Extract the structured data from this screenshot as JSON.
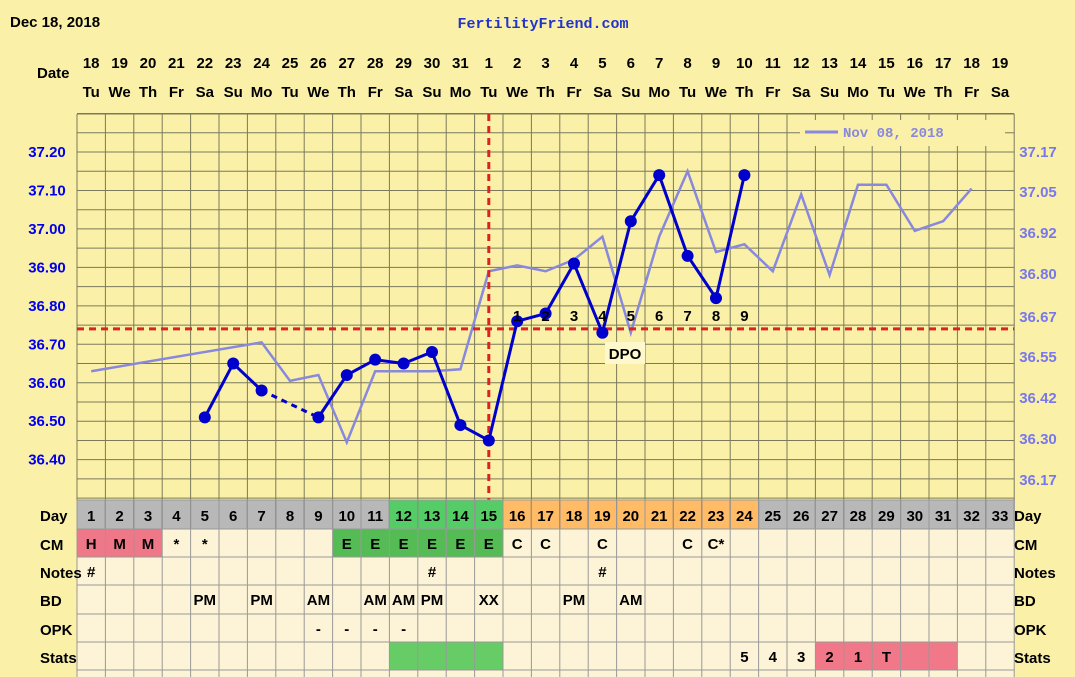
{
  "header": {
    "date": "Dec 18, 2018",
    "site": "FertilityFriend.com"
  },
  "row_labels": {
    "date": "Date",
    "day": "Day",
    "cm": "CM",
    "notes": "Notes",
    "bd": "BD",
    "opk": "OPK",
    "stats": "Stats"
  },
  "dates": [
    "18",
    "19",
    "20",
    "21",
    "22",
    "23",
    "24",
    "25",
    "26",
    "27",
    "28",
    "29",
    "30",
    "31",
    "1",
    "2",
    "3",
    "4",
    "5",
    "6",
    "7",
    "8",
    "9",
    "10",
    "11",
    "12",
    "13",
    "14",
    "15",
    "16",
    "17",
    "18",
    "19"
  ],
  "weekdays": [
    "Tu",
    "We",
    "Th",
    "Fr",
    "Sa",
    "Su",
    "Mo",
    "Tu",
    "We",
    "Th",
    "Fr",
    "Sa",
    "Su",
    "Mo",
    "Tu",
    "We",
    "Th",
    "Fr",
    "Sa",
    "Su",
    "Mo",
    "Tu",
    "We",
    "Th",
    "Fr",
    "Sa",
    "Su",
    "Mo",
    "Tu",
    "We",
    "Th",
    "Fr",
    "Sa"
  ],
  "cm": [
    "H",
    "M",
    "M",
    "*",
    "*",
    "",
    "",
    "",
    "",
    "E",
    "E",
    "E",
    "E",
    "E",
    "E",
    "C",
    "C",
    "",
    "C",
    "",
    "",
    "C",
    "C*",
    "",
    "",
    "",
    "",
    "",
    "",
    "",
    "",
    "",
    ""
  ],
  "notes": [
    "#",
    "",
    "",
    "",
    "",
    "",
    "",
    "",
    "",
    "",
    "",
    "",
    "#",
    "",
    "",
    "",
    "",
    "",
    "#",
    "",
    "",
    "",
    "",
    "",
    "",
    "",
    "",
    "",
    "",
    "",
    "",
    "",
    ""
  ],
  "bd": [
    "",
    "",
    "",
    "",
    "PM",
    "",
    "PM",
    "",
    "AM",
    "",
    "AM",
    "AM",
    "PM",
    "",
    "XX",
    "",
    "",
    "PM",
    "",
    "AM",
    "",
    "",
    "",
    "",
    "",
    "",
    "",
    "",
    "",
    "",
    "",
    "",
    ""
  ],
  "opk": [
    "",
    "",
    "",
    "",
    "",
    "",
    "",
    "",
    "-",
    "-",
    "-",
    "-",
    "",
    "",
    "",
    "",
    "",
    "",
    "",
    "",
    "",
    "",
    "",
    "",
    "",
    "",
    "",
    "",
    "",
    "",
    "",
    "",
    ""
  ],
  "stats": [
    "",
    "",
    "",
    "",
    "",
    "",
    "",
    "",
    "",
    "",
    "",
    "",
    "",
    "",
    "",
    "",
    "",
    "",
    "",
    "",
    "",
    "",
    "",
    "5",
    "4",
    "3",
    "2",
    "1",
    "T",
    "",
    "",
    "",
    ""
  ],
  "colors": {
    "background": "#faf0a8",
    "grid": "#7a7a5a",
    "temp_line": "#0000cc",
    "overlay_line": "#8888dd",
    "coverline": "#dd2222",
    "day_gray": "#b8b8b8",
    "day_green": "#55cc66",
    "day_orange": "#ffbb66",
    "cm_red": "#ee7788",
    "cm_green": "#55bb55",
    "stats_green": "#66cc66",
    "stats_pink": "#f07888",
    "table_bg": "#fdf3d6",
    "axis_left": "#0000ee",
    "axis_right": "#7777ee"
  },
  "chart_data": {
    "type": "line",
    "title": "",
    "xlabel": "Day",
    "ylabel": "",
    "ylim": [
      36.4,
      37.2
    ],
    "y_ticks_left": [
      "37.20",
      "37.10",
      "37.00",
      "36.90",
      "36.80",
      "36.70",
      "36.60",
      "36.50",
      "36.40"
    ],
    "y_ticks_right": [
      "37.17",
      "37.05",
      "36.92",
      "36.80",
      "36.67",
      "36.55",
      "36.42",
      "36.30",
      "36.17"
    ],
    "grid": true,
    "legend_position": "top-right",
    "series": [
      {
        "name": "",
        "style": "solid-with-markers",
        "points": [
          {
            "day": 5,
            "value": 36.51
          },
          {
            "day": 6,
            "value": 36.65
          },
          {
            "day": 7,
            "value": 36.58
          },
          {
            "day": 9,
            "value": 36.51,
            "dashed_from_prev": true
          },
          {
            "day": 10,
            "value": 36.62
          },
          {
            "day": 11,
            "value": 36.66
          },
          {
            "day": 12,
            "value": 36.65
          },
          {
            "day": 13,
            "value": 36.68
          },
          {
            "day": 14,
            "value": 36.49
          },
          {
            "day": 15,
            "value": 36.45
          },
          {
            "day": 16,
            "value": 36.76
          },
          {
            "day": 17,
            "value": 36.78
          },
          {
            "day": 18,
            "value": 36.91
          },
          {
            "day": 19,
            "value": 36.73
          },
          {
            "day": 20,
            "value": 37.02
          },
          {
            "day": 21,
            "value": 37.14
          },
          {
            "day": 22,
            "value": 36.93
          },
          {
            "day": 23,
            "value": 36.82
          },
          {
            "day": 24,
            "value": 37.14
          }
        ]
      },
      {
        "name": "Nov 08, 2018",
        "style": "overlay",
        "points": [
          {
            "day": 1,
            "value": 36.63
          },
          {
            "day": 7,
            "value": 36.705
          },
          {
            "day": 8,
            "value": 36.605
          },
          {
            "day": 9,
            "value": 36.62
          },
          {
            "day": 10,
            "value": 36.445
          },
          {
            "day": 11,
            "value": 36.63
          },
          {
            "day": 12,
            "value": 36.63
          },
          {
            "day": 13,
            "value": 36.63
          },
          {
            "day": 14,
            "value": 36.635
          },
          {
            "day": 15,
            "value": 36.89
          },
          {
            "day": 16,
            "value": 36.905
          },
          {
            "day": 17,
            "value": 36.89
          },
          {
            "day": 18,
            "value": 36.92
          },
          {
            "day": 19,
            "value": 36.98
          },
          {
            "day": 20,
            "value": 36.73
          },
          {
            "day": 21,
            "value": 36.98
          },
          {
            "day": 22,
            "value": 37.15
          },
          {
            "day": 23,
            "value": 36.94
          },
          {
            "day": 24,
            "value": 36.96
          },
          {
            "day": 25,
            "value": 36.89
          },
          {
            "day": 26,
            "value": 37.09
          },
          {
            "day": 27,
            "value": 36.88
          },
          {
            "day": 28,
            "value": 37.115
          },
          {
            "day": 29,
            "value": 37.115
          },
          {
            "day": 30,
            "value": 36.995
          },
          {
            "day": 31,
            "value": 37.02
          },
          {
            "day": 32,
            "value": 37.105
          }
        ]
      }
    ],
    "coverline": 36.74,
    "ovulation_day": 15,
    "dpo_labels": [
      "1",
      "2",
      "3",
      "4",
      "5",
      "6",
      "7",
      "8",
      "9"
    ],
    "dpo_start_day": 16,
    "dpo_caption": "DPO"
  }
}
